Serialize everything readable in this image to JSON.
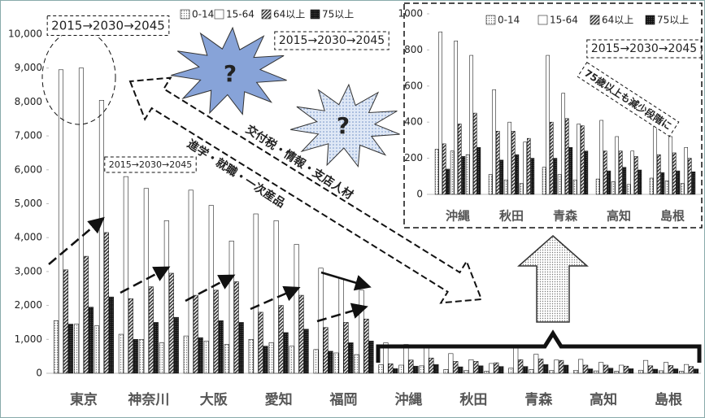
{
  "chart_data": [
    {
      "type": "bar",
      "categories": [
        "東京",
        "神奈川",
        "大阪",
        "愛知",
        "福岡",
        "沖縄",
        "秋田",
        "青森",
        "高知",
        "島根"
      ],
      "series": [
        {
          "name": "0-14",
          "pattern": "dots",
          "values": [
            [
              1550,
              1450,
              1400
            ],
            [
              1150,
              1000,
              900
            ],
            [
              1100,
              950,
              850
            ],
            [
              1000,
              900,
              800
            ],
            [
              700,
              600,
              550
            ],
            [
              250,
              240,
              220
            ],
            [
              110,
              80,
              60
            ],
            [
              150,
              110,
              80
            ],
            [
              85,
              70,
              55
            ],
            [
              90,
              75,
              60
            ]
          ]
        },
        {
          "name": "15-64",
          "pattern": "none",
          "values": [
            [
              8950,
              9000,
              8050
            ],
            [
              5800,
              5450,
              4500
            ],
            [
              5400,
              4950,
              3900
            ],
            [
              4700,
              4500,
              3800
            ],
            [
              3100,
              2800,
              2450
            ],
            [
              900,
              850,
              770
            ],
            [
              580,
              400,
              290
            ],
            [
              770,
              560,
              390
            ],
            [
              410,
              320,
              240
            ],
            [
              380,
              320,
              260
            ]
          ]
        },
        {
          "name": "64以上",
          "pattern": "hatch",
          "values": [
            [
              3050,
              3450,
              4150
            ],
            [
              2200,
              2550,
              2950
            ],
            [
              2300,
              2450,
              2700
            ],
            [
              1800,
              2000,
              2300
            ],
            [
              1350,
              1500,
              1600
            ],
            [
              280,
              390,
              450
            ],
            [
              350,
              350,
              310
            ],
            [
              400,
              420,
              380
            ],
            [
              240,
              240,
              210
            ],
            [
              220,
              230,
              200
            ]
          ]
        },
        {
          "name": "75以上",
          "pattern": "dense",
          "values": [
            [
              1450,
              1950,
              2250
            ],
            [
              1000,
              1500,
              1650
            ],
            [
              1050,
              1550,
              1500
            ],
            [
              800,
              1200,
              1300
            ],
            [
              650,
              900,
              950
            ],
            [
              140,
              210,
              260
            ],
            [
              190,
              220,
              200
            ],
            [
              200,
              260,
              240
            ],
            [
              130,
              150,
              135
            ],
            [
              120,
              130,
              125
            ]
          ]
        }
      ],
      "ylim": [
        0,
        10000
      ],
      "yticks": [
        0,
        {
          "value": 1000,
          "label": "1,000"
        },
        {
          "value": 2000,
          "label": "2,000"
        },
        {
          "value": 3000,
          "label": "3,000"
        },
        {
          "value": 4000,
          "label": "4,000"
        },
        {
          "value": 5000,
          "label": "5,000"
        },
        {
          "value": 6000,
          "label": "6,000"
        },
        {
          "value": 7000,
          "label": "7,000"
        },
        {
          "value": 8000,
          "label": "8,000"
        },
        {
          "value": 9000,
          "label": "9,000"
        },
        {
          "value": 10000,
          "label": "10,000"
        }
      ],
      "legend": "top-left",
      "annotations": [
        "2015→2030→2045",
        "2015→2030→2045",
        "2015→2030→2045",
        "交付税・情報・支店人材",
        "進学・就職・一次産品",
        "?",
        "?"
      ]
    },
    {
      "type": "bar",
      "categories": [
        "沖縄",
        "秋田",
        "青森",
        "高知",
        "島根"
      ],
      "series": [
        {
          "name": "0-14",
          "pattern": "dots",
          "values": [
            [
              250,
              240,
              220
            ],
            [
              110,
              80,
              60
            ],
            [
              150,
              110,
              80
            ],
            [
              85,
              70,
              55
            ],
            [
              90,
              75,
              60
            ]
          ]
        },
        {
          "name": "15-64",
          "pattern": "none",
          "values": [
            [
              900,
              850,
              770
            ],
            [
              580,
              400,
              290
            ],
            [
              770,
              560,
              390
            ],
            [
              410,
              320,
              240
            ],
            [
              380,
              320,
              260
            ]
          ]
        },
        {
          "name": "64以上",
          "pattern": "hatch",
          "values": [
            [
              280,
              390,
              450
            ],
            [
              350,
              350,
              310
            ],
            [
              400,
              420,
              380
            ],
            [
              240,
              240,
              210
            ],
            [
              220,
              230,
              200
            ]
          ]
        },
        {
          "name": "75以上",
          "pattern": "dense",
          "values": [
            [
              140,
              210,
              260
            ],
            [
              190,
              220,
              200
            ],
            [
              200,
              260,
              240
            ],
            [
              130,
              150,
              135
            ],
            [
              120,
              130,
              125
            ]
          ]
        }
      ],
      "ylim": [
        0,
        1000
      ],
      "yticks": [
        0,
        200,
        400,
        600,
        800,
        1000
      ],
      "legend": "top-right",
      "annotations": [
        "2015→2030→2045",
        "75歳以上も減少段階に"
      ]
    }
  ]
}
